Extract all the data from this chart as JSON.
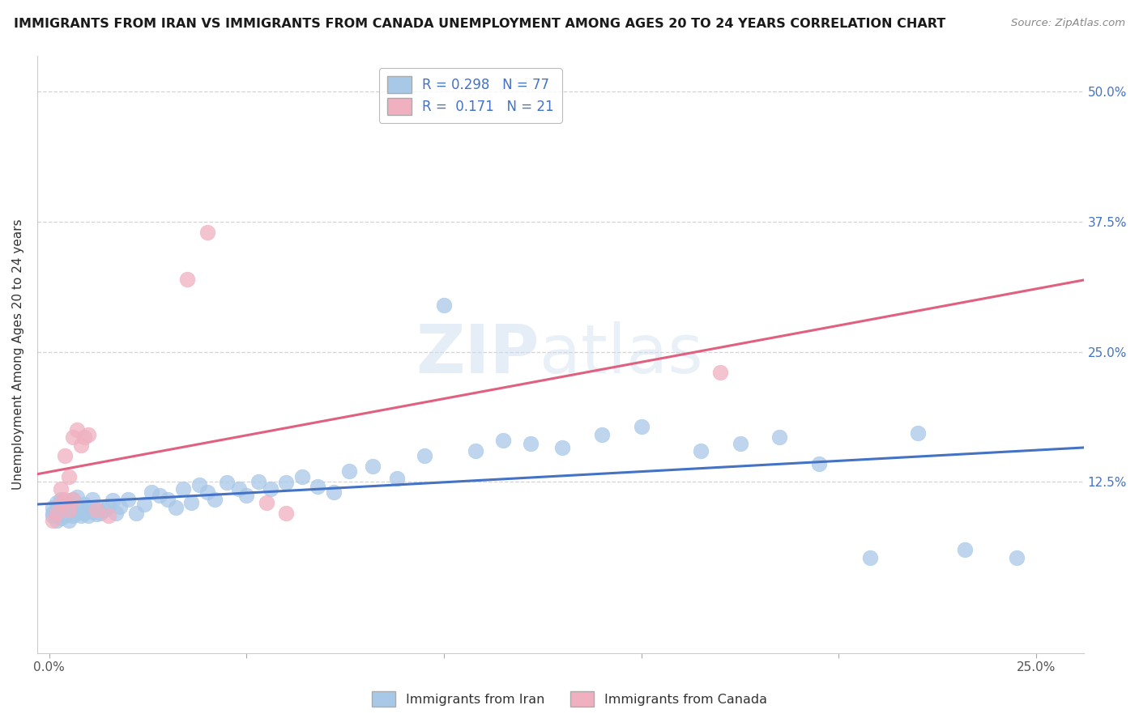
{
  "title": "IMMIGRANTS FROM IRAN VS IMMIGRANTS FROM CANADA UNEMPLOYMENT AMONG AGES 20 TO 24 YEARS CORRELATION CHART",
  "source": "Source: ZipAtlas.com",
  "ylabel": "Unemployment Among Ages 20 to 24 years",
  "color_iran": "#a8c8e8",
  "color_canada": "#f0b0c0",
  "line_color_iran": "#4472c4",
  "line_color_canada": "#e06080",
  "watermark_color": "#d0dff0",
  "background_color": "#ffffff",
  "grid_color": "#c8c8c8",
  "xlim": [
    -0.003,
    0.262
  ],
  "ylim": [
    -0.04,
    0.535
  ],
  "iran_x": [
    0.001,
    0.001,
    0.001,
    0.002,
    0.002,
    0.002,
    0.002,
    0.003,
    0.003,
    0.003,
    0.003,
    0.004,
    0.004,
    0.004,
    0.005,
    0.005,
    0.005,
    0.006,
    0.006,
    0.007,
    0.007,
    0.008,
    0.008,
    0.009,
    0.009,
    0.01,
    0.01,
    0.011,
    0.011,
    0.012,
    0.012,
    0.013,
    0.014,
    0.015,
    0.016,
    0.017,
    0.018,
    0.02,
    0.022,
    0.024,
    0.026,
    0.028,
    0.03,
    0.032,
    0.034,
    0.036,
    0.038,
    0.04,
    0.042,
    0.045,
    0.048,
    0.05,
    0.053,
    0.056,
    0.06,
    0.064,
    0.068,
    0.072,
    0.076,
    0.082,
    0.088,
    0.095,
    0.1,
    0.108,
    0.115,
    0.122,
    0.13,
    0.14,
    0.15,
    0.165,
    0.175,
    0.185,
    0.195,
    0.208,
    0.22,
    0.232,
    0.245
  ],
  "iran_y": [
    0.095,
    0.1,
    0.092,
    0.088,
    0.105,
    0.098,
    0.093,
    0.102,
    0.096,
    0.09,
    0.108,
    0.095,
    0.1,
    0.092,
    0.088,
    0.103,
    0.097,
    0.092,
    0.108,
    0.095,
    0.11,
    0.092,
    0.098,
    0.095,
    0.103,
    0.1,
    0.092,
    0.096,
    0.108,
    0.094,
    0.1,
    0.095,
    0.098,
    0.102,
    0.107,
    0.095,
    0.101,
    0.108,
    0.095,
    0.103,
    0.115,
    0.112,
    0.108,
    0.1,
    0.118,
    0.105,
    0.122,
    0.115,
    0.108,
    0.124,
    0.118,
    0.112,
    0.125,
    0.118,
    0.124,
    0.13,
    0.12,
    0.115,
    0.135,
    0.14,
    0.128,
    0.15,
    0.295,
    0.155,
    0.165,
    0.162,
    0.158,
    0.17,
    0.178,
    0.155,
    0.162,
    0.168,
    0.142,
    0.052,
    0.172,
    0.06,
    0.052
  ],
  "canada_x": [
    0.001,
    0.002,
    0.003,
    0.003,
    0.004,
    0.004,
    0.005,
    0.005,
    0.006,
    0.006,
    0.007,
    0.008,
    0.009,
    0.01,
    0.012,
    0.015,
    0.035,
    0.04,
    0.055,
    0.06,
    0.17
  ],
  "canada_y": [
    0.088,
    0.095,
    0.105,
    0.118,
    0.108,
    0.15,
    0.098,
    0.13,
    0.108,
    0.168,
    0.175,
    0.16,
    0.168,
    0.17,
    0.098,
    0.092,
    0.32,
    0.365,
    0.105,
    0.095,
    0.23
  ]
}
